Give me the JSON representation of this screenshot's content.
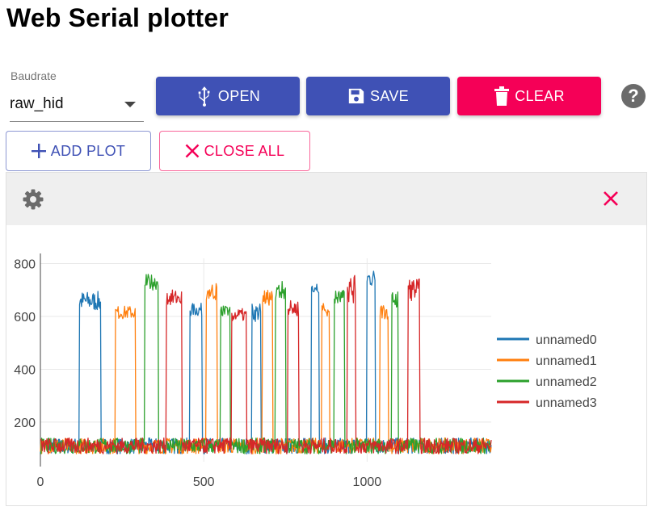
{
  "title": "Web Serial plotter",
  "baudrate": {
    "label": "Baudrate",
    "value": "raw_hid"
  },
  "buttons": {
    "open": "OPEN",
    "save": "SAVE",
    "clear": "CLEAR",
    "help": "?",
    "add_plot": "ADD PLOT",
    "close_all": "CLOSE ALL"
  },
  "icons": {
    "open": "usb-icon",
    "save": "floppy-icon",
    "clear": "trash-icon",
    "help": "help-icon",
    "add": "plus-icon",
    "close": "close-icon",
    "settings": "gear-icon"
  },
  "colors": {
    "primary": "#3f51b5",
    "secondary": "#f50057"
  },
  "chart_data": {
    "type": "line",
    "title": "",
    "xlabel": "",
    "ylabel": "",
    "xlim": [
      0,
      1380
    ],
    "ylim": [
      50,
      820
    ],
    "x_ticks": [
      0,
      500,
      1000
    ],
    "y_ticks": [
      200,
      400,
      600,
      800
    ],
    "grid": true,
    "legend": "right",
    "baseline": {
      "low": 80,
      "high": 140
    },
    "series": [
      {
        "name": "unnamed0",
        "color": "#1f77b4",
        "segments": [
          {
            "x": [
              120,
              185
            ],
            "y": [
              620,
              695
            ]
          },
          {
            "x": [
              458,
              495
            ],
            "y": [
              600,
              650
            ]
          },
          {
            "x": [
              648,
              675
            ],
            "y": [
              580,
              650
            ]
          },
          {
            "x": [
              830,
              852
            ],
            "y": [
              690,
              740
            ]
          },
          {
            "x": [
              1000,
              1025
            ],
            "y": [
              710,
              780
            ]
          }
        ]
      },
      {
        "name": "unnamed1",
        "color": "#ff7f0e",
        "segments": [
          {
            "x": [
              230,
              290
            ],
            "y": [
              590,
              640
            ]
          },
          {
            "x": [
              508,
              540
            ],
            "y": [
              660,
              730
            ]
          },
          {
            "x": [
              680,
              710
            ],
            "y": [
              640,
              700
            ]
          },
          {
            "x": [
              862,
              885
            ],
            "y": [
              600,
              650
            ]
          },
          {
            "x": [
              1040,
              1065
            ],
            "y": [
              590,
              650
            ]
          }
        ]
      },
      {
        "name": "unnamed2",
        "color": "#2ca02c",
        "segments": [
          {
            "x": [
              320,
              360
            ],
            "y": [
              700,
              760
            ]
          },
          {
            "x": [
              552,
              580
            ],
            "y": [
              600,
              640
            ]
          },
          {
            "x": [
              720,
              750
            ],
            "y": [
              660,
              735
            ]
          },
          {
            "x": [
              900,
              930
            ],
            "y": [
              640,
              700
            ]
          },
          {
            "x": [
              1075,
              1095
            ],
            "y": [
              630,
              700
            ]
          }
        ]
      },
      {
        "name": "unnamed3",
        "color": "#d62728",
        "segments": [
          {
            "x": [
              385,
              432
            ],
            "y": [
              640,
              700
            ]
          },
          {
            "x": [
              585,
              630
            ],
            "y": [
              580,
              630
            ]
          },
          {
            "x": [
              758,
              790
            ],
            "y": [
              600,
              660
            ]
          },
          {
            "x": [
              940,
              965
            ],
            "y": [
              650,
              755
            ]
          },
          {
            "x": [
              1125,
              1160
            ],
            "y": [
              660,
              745
            ]
          }
        ]
      }
    ]
  }
}
